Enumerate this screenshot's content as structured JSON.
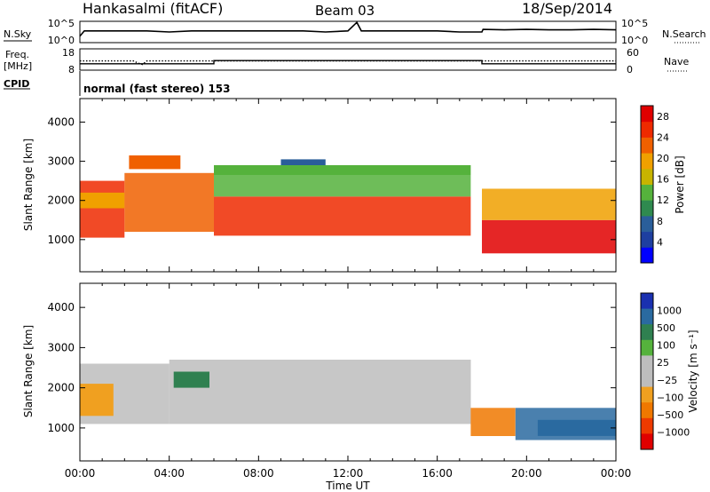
{
  "header": {
    "station": "Hankasalmi (fitACF)",
    "beam": "Beam 03",
    "date": "18/Sep/2014"
  },
  "noise_panel": {
    "left_label": "N.Sky",
    "right_label": "N.Search",
    "left_ticks": [
      "10^5",
      "10^0"
    ],
    "right_ticks": [
      "10^5",
      "10^0"
    ]
  },
  "freq_panel": {
    "left_label_line1": "Freq.",
    "left_label_line2": "[MHz]",
    "right_label": "Nave",
    "left_ticks": [
      "18",
      "8"
    ],
    "right_ticks": [
      "60",
      "0"
    ]
  },
  "cpid": {
    "label": "CPID",
    "mode": "normal (fast stereo) 153"
  },
  "colors": {
    "power_scale": [
      "#0000ff",
      "#1e3fa0",
      "#2a5e9a",
      "#2f8a4f",
      "#55b23c",
      "#c8b400",
      "#f0a000",
      "#f06000",
      "#ee2a00",
      "#e00000"
    ],
    "velocity_scale": [
      "#1a30b0",
      "#2a6aa0",
      "#2f8050",
      "#55b23c",
      "#bdbdbd",
      "#bdbdbd",
      "#f0a020",
      "#f07800",
      "#ee3a00",
      "#e00000"
    ]
  },
  "chart_data": [
    {
      "type": "line",
      "panel": "noise",
      "xlabel": "Time UT",
      "x_range_hours": [
        0,
        24
      ],
      "series": [
        {
          "name": "N.Sky",
          "x": [
            0,
            0.2,
            1,
            2,
            3,
            4,
            5,
            6,
            7,
            8,
            9,
            10,
            11,
            12,
            12.4,
            12.6,
            13,
            14,
            15,
            16,
            17,
            18,
            18.05,
            19,
            20,
            21,
            22,
            23,
            24
          ],
          "y_frac": [
            0.3,
            0.55,
            0.55,
            0.55,
            0.55,
            0.5,
            0.55,
            0.55,
            0.55,
            0.55,
            0.55,
            0.55,
            0.5,
            0.55,
            0.95,
            0.55,
            0.55,
            0.55,
            0.55,
            0.55,
            0.5,
            0.5,
            0.62,
            0.6,
            0.62,
            0.6,
            0.6,
            0.62,
            0.6
          ]
        }
      ]
    },
    {
      "type": "line",
      "panel": "frequency",
      "x_range_hours": [
        0,
        24
      ],
      "y_range_mhz": [
        8,
        18
      ],
      "series": [
        {
          "name": "Freq.",
          "x": [
            0,
            6,
            6,
            18,
            18,
            24
          ],
          "y": [
            11,
            11,
            12.5,
            12.5,
            11,
            11
          ]
        },
        {
          "name": "Nave",
          "x": [
            0,
            2.4,
            2.6,
            2.8,
            3.0,
            24
          ],
          "y_nave": [
            26,
            26,
            20,
            16,
            26,
            26
          ]
        }
      ]
    },
    {
      "type": "heatmap",
      "panel": "power",
      "title": "",
      "xlabel": "Time UT",
      "ylabel": "Slant Range [km]",
      "x_range_hours": [
        0,
        24
      ],
      "ylim": [
        180,
        4600
      ],
      "y_ticks": [
        1000,
        2000,
        3000,
        4000
      ],
      "colorbar": {
        "label": "Power [dB]",
        "ticks": [
          4,
          8,
          12,
          16,
          20,
          24,
          28
        ],
        "range": [
          0,
          30
        ]
      },
      "regions": [
        {
          "t": [
            0,
            2
          ],
          "r": [
            1050,
            2500
          ],
          "value": 26
        },
        {
          "t": [
            2,
            6
          ],
          "r": [
            1200,
            2700
          ],
          "value": 22
        },
        {
          "t": [
            6,
            17.5
          ],
          "r": [
            1100,
            2100
          ],
          "value": 24
        },
        {
          "t": [
            6,
            17.5
          ],
          "r": [
            2100,
            2650
          ],
          "value": 14
        },
        {
          "t": [
            18,
            24
          ],
          "r": [
            650,
            1500
          ],
          "value": 28
        },
        {
          "t": [
            18,
            24
          ],
          "r": [
            1500,
            2300
          ],
          "value": 18
        }
      ]
    },
    {
      "type": "heatmap",
      "panel": "velocity",
      "xlabel": "Time UT",
      "ylabel": "Slant Range [km]",
      "x_range_hours": [
        0,
        24
      ],
      "ylim": [
        180,
        4600
      ],
      "y_ticks": [
        1000,
        2000,
        3000,
        4000
      ],
      "x_ticks": [
        "00:00",
        "04:00",
        "08:00",
        "12:00",
        "16:00",
        "20:00",
        "00:00"
      ],
      "colorbar": {
        "label": "Velocity [m s⁻¹]",
        "ticks": [
          "1000",
          "500",
          "100",
          "25",
          "−25",
          "−100",
          "−500",
          "−1000"
        ]
      },
      "regions": [
        {
          "t": [
            0,
            4
          ],
          "r": [
            1100,
            2600
          ],
          "value": 0
        },
        {
          "t": [
            4,
            17.5
          ],
          "r": [
            1100,
            2700
          ],
          "value": 0
        },
        {
          "t": [
            17.5,
            19.5
          ],
          "r": [
            800,
            1500
          ],
          "value": -300
        },
        {
          "t": [
            19.5,
            24
          ],
          "r": [
            700,
            1500
          ],
          "value": 200
        }
      ]
    }
  ]
}
